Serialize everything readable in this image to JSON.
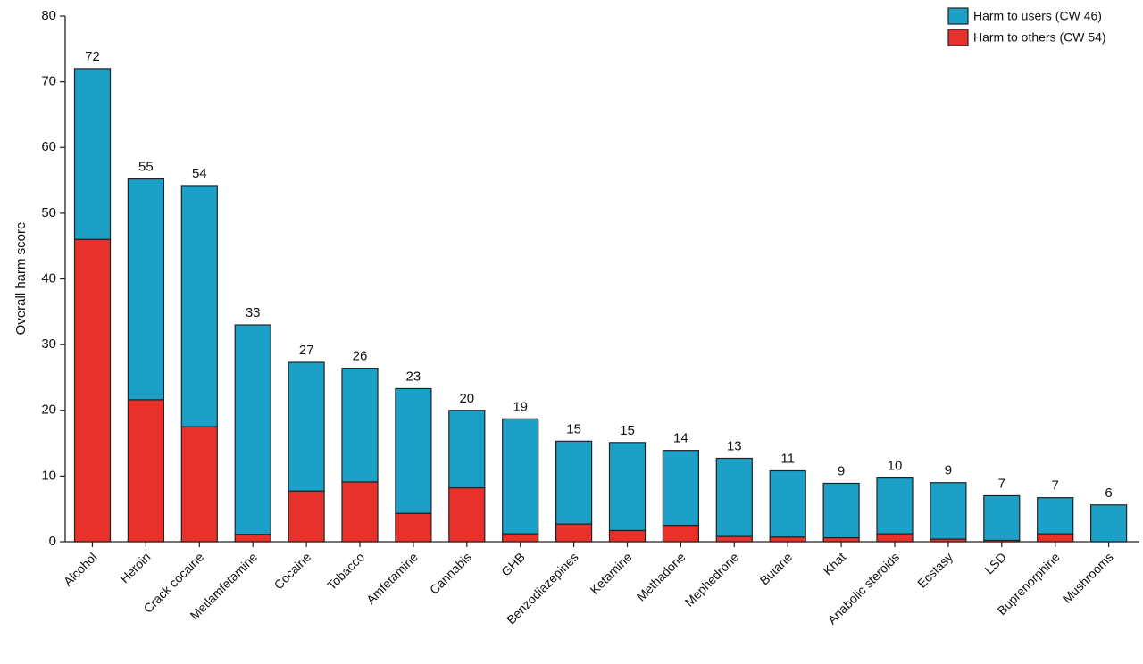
{
  "chart_data": {
    "type": "bar",
    "stacked": true,
    "title": "",
    "xlabel": "",
    "ylabel": "Overall harm score",
    "ylim": [
      0,
      80
    ],
    "yticks": [
      "0",
      "10",
      "20",
      "30",
      "40",
      "50",
      "60",
      "70",
      "80"
    ],
    "grid": false,
    "legend_position": "top-right",
    "categories": [
      "Alcohol",
      "Heroin",
      "Crack cocaine",
      "Metlamfetamine",
      "Cocaine",
      "Tobacco",
      "Amfetamine",
      "Cannabis",
      "GHB",
      "Benzodiazepines",
      "Ketamine",
      "Methadone",
      "Mephedrone",
      "Butane",
      "Khat",
      "Anabolic steroids",
      "Ecstasy",
      "LSD",
      "Buprenorphine",
      "Mushrooms"
    ],
    "totals": [
      "72",
      "55",
      "54",
      "33",
      "27",
      "26",
      "23",
      "20",
      "19",
      "15",
      "15",
      "14",
      "13",
      "11",
      "9",
      "10",
      "9",
      "7",
      "7",
      "6"
    ],
    "series": [
      {
        "name": "Harm to others (CW 54)",
        "color": "#e8312a",
        "values": [
          46,
          21.6,
          17.5,
          1.1,
          7.7,
          9.1,
          4.3,
          8.2,
          1.2,
          2.7,
          1.7,
          2.5,
          0.8,
          0.7,
          0.6,
          1.2,
          0.4,
          0.2,
          1.2,
          0
        ]
      },
      {
        "name": "Harm to users (CW 46)",
        "color": "#1ca0c8",
        "values": [
          26,
          33.6,
          36.7,
          31.9,
          19.6,
          17.3,
          19.0,
          11.8,
          17.5,
          12.6,
          13.4,
          11.4,
          11.9,
          10.1,
          8.3,
          8.5,
          8.6,
          6.8,
          5.5,
          5.6
        ]
      }
    ],
    "legend_order": [
      "Harm to users (CW 46)",
      "Harm to others (CW 54)"
    ]
  }
}
